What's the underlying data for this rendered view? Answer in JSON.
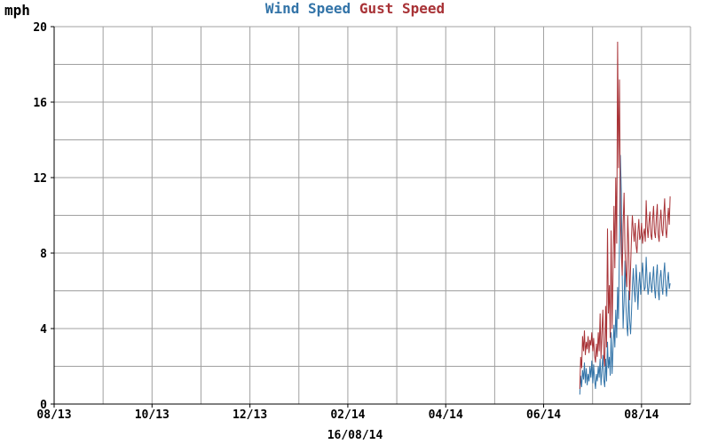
{
  "chart_data": {
    "type": "line",
    "unit_label": "mph",
    "date_label": "16/08/14",
    "x_ticks": [
      "08/13",
      "10/13",
      "12/13",
      "02/14",
      "04/14",
      "06/14",
      "08/14"
    ],
    "ylim": [
      0,
      20
    ],
    "y_ticks": [
      0,
      4,
      8,
      12,
      16,
      20
    ],
    "x_range_days": [
      0,
      345
    ],
    "series": [
      {
        "name": "Wind Speed",
        "color": "#3374a8",
        "x": [
          285,
          285.5,
          286,
          286.5,
          287,
          287.5,
          288,
          288.5,
          289,
          289.5,
          290,
          290.5,
          291,
          291.5,
          292,
          292.5,
          293,
          293.5,
          294,
          294.5,
          295,
          295.5,
          296,
          296.5,
          297,
          297.5,
          298,
          298.5,
          299,
          299.5,
          300,
          300.5,
          301,
          301.5,
          302,
          302.5,
          303,
          303.5,
          304,
          304.5,
          305,
          305.5,
          306,
          306.5,
          307,
          307.5,
          308,
          308.5,
          309,
          309.5,
          310,
          310.5,
          311,
          311.5,
          312,
          312.5,
          313,
          313.5,
          314,
          314.5,
          315,
          315.5,
          316,
          316.5,
          317,
          317.5,
          318,
          318.5,
          319,
          319.5,
          320,
          320.5,
          321,
          321.5,
          322,
          322.5,
          323,
          323.5,
          324,
          324.5,
          325,
          325.5,
          326,
          326.5,
          327,
          327.5,
          328,
          328.5,
          329,
          329.5,
          330,
          330.5,
          331,
          331.5,
          332,
          332.5,
          333,
          333.5,
          334
        ],
        "values": [
          0.5,
          1.5,
          0.9,
          1.8,
          1.3,
          2.2,
          1.1,
          1.9,
          1.0,
          1.6,
          1.2,
          2.0,
          1.4,
          2.3,
          1.1,
          2.1,
          1.3,
          0.8,
          1.6,
          1.2,
          2.0,
          1.4,
          2.4,
          1.0,
          1.8,
          2.6,
          1.3,
          0.9,
          2.4,
          1.2,
          3.3,
          1.9,
          2.5,
          1.5,
          3.8,
          1.6,
          2.9,
          4.2,
          3.0,
          5.0,
          3.5,
          6.2,
          4.5,
          8.5,
          13.2,
          11.2,
          6.8,
          4.0,
          5.5,
          7.6,
          5.2,
          4.2,
          3.6,
          6.0,
          4.5,
          3.7,
          4.8,
          6.2,
          7.2,
          6.0,
          5.4,
          7.4,
          6.5,
          5.0,
          6.3,
          7.0,
          5.8,
          6.5,
          7.5,
          6.8,
          6.0,
          6.2,
          7.8,
          6.5,
          5.8,
          6.2,
          7.0,
          6.4,
          5.9,
          6.6,
          7.3,
          6.1,
          5.6,
          6.8,
          7.4,
          6.0,
          5.5,
          6.7,
          7.1,
          6.2,
          5.8,
          6.9,
          7.5,
          6.3,
          5.7,
          6.5,
          7.0,
          6.1,
          6.4
        ]
      },
      {
        "name": "Gust Speed",
        "color": "#a83236",
        "x": [
          285,
          285.5,
          286,
          286.5,
          287,
          287.5,
          288,
          288.5,
          289,
          289.5,
          290,
          290.5,
          291,
          291.5,
          292,
          292.5,
          293,
          293.5,
          294,
          294.5,
          295,
          295.5,
          296,
          296.5,
          297,
          297.5,
          298,
          298.5,
          299,
          299.5,
          300,
          300.5,
          301,
          301.5,
          302,
          302.5,
          303,
          303.5,
          304,
          304.5,
          305,
          305.5,
          306,
          306.5,
          307,
          307.5,
          308,
          308.5,
          309,
          309.5,
          310,
          310.5,
          311,
          311.5,
          312,
          312.5,
          313,
          313.5,
          314,
          314.5,
          315,
          315.5,
          316,
          316.5,
          317,
          317.5,
          318,
          318.5,
          319,
          319.5,
          320,
          320.5,
          321,
          321.5,
          322,
          322.5,
          323,
          323.5,
          324,
          324.5,
          325,
          325.5,
          326,
          326.5,
          327,
          327.5,
          328,
          328.5,
          329,
          329.5,
          330,
          330.5,
          331,
          331.5,
          332,
          332.5,
          333,
          333.5,
          334
        ],
        "values": [
          0.8,
          2.5,
          1.9,
          3.6,
          2.8,
          3.9,
          2.6,
          3.3,
          2.9,
          3.6,
          2.7,
          3.4,
          3.1,
          3.8,
          2.8,
          3.5,
          2.6,
          2.2,
          3.2,
          2.5,
          3.8,
          2.8,
          4.8,
          2.4,
          3.8,
          5.0,
          2.6,
          2.0,
          5.2,
          3.0,
          9.3,
          4.8,
          6.3,
          3.5,
          9.2,
          4.0,
          6.8,
          10.5,
          7.2,
          12.0,
          8.5,
          19.2,
          12.5,
          17.2,
          10.2,
          8.0,
          6.8,
          9.5,
          11.2,
          8.2,
          7.0,
          6.2,
          10.0,
          8.4,
          5.5,
          7.2,
          8.8,
          10.0,
          9.2,
          8.6,
          9.6,
          8.4,
          8.0,
          9.1,
          9.8,
          8.7,
          8.9,
          9.6,
          8.5,
          9.0,
          9.3,
          8.6,
          10.8,
          9.4,
          8.8,
          9.6,
          10.2,
          9.0,
          8.7,
          9.8,
          10.5,
          9.1,
          8.8,
          9.9,
          10.6,
          9.0,
          8.6,
          9.7,
          10.3,
          9.2,
          8.9,
          10.0,
          10.9,
          9.3,
          8.8,
          9.6,
          10.4,
          9.5,
          11.0
        ]
      }
    ]
  }
}
